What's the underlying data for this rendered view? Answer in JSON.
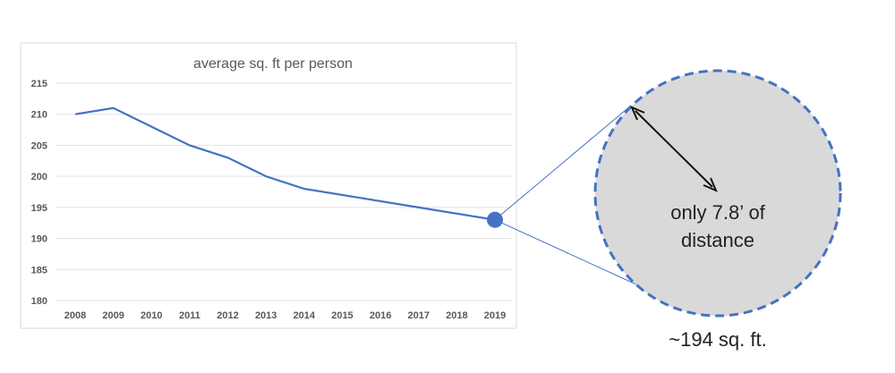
{
  "chart_data": {
    "type": "line",
    "title": "average sq. ft per person",
    "xlabel": "",
    "ylabel": "",
    "categories": [
      "2008",
      "2009",
      "2010",
      "2011",
      "2012",
      "2013",
      "2014",
      "2015",
      "2016",
      "2017",
      "2018",
      "2019"
    ],
    "values": [
      210,
      211,
      208,
      205,
      203,
      200,
      198,
      197,
      196,
      195,
      194,
      193
    ],
    "ylim": [
      180,
      215
    ],
    "yticks": [
      "215",
      "210",
      "205",
      "200",
      "195",
      "190",
      "185",
      "180"
    ],
    "grid": true,
    "legend": "none",
    "line_color": "#4472c4",
    "highlighted_point": "2019"
  },
  "annotation": {
    "circle_text_line1": "only 7.8’ of",
    "circle_text_line2": "distance",
    "caption": "~194 sq. ft.",
    "circle_fill": "#d9d9d9",
    "circle_border": "#4472c4"
  }
}
